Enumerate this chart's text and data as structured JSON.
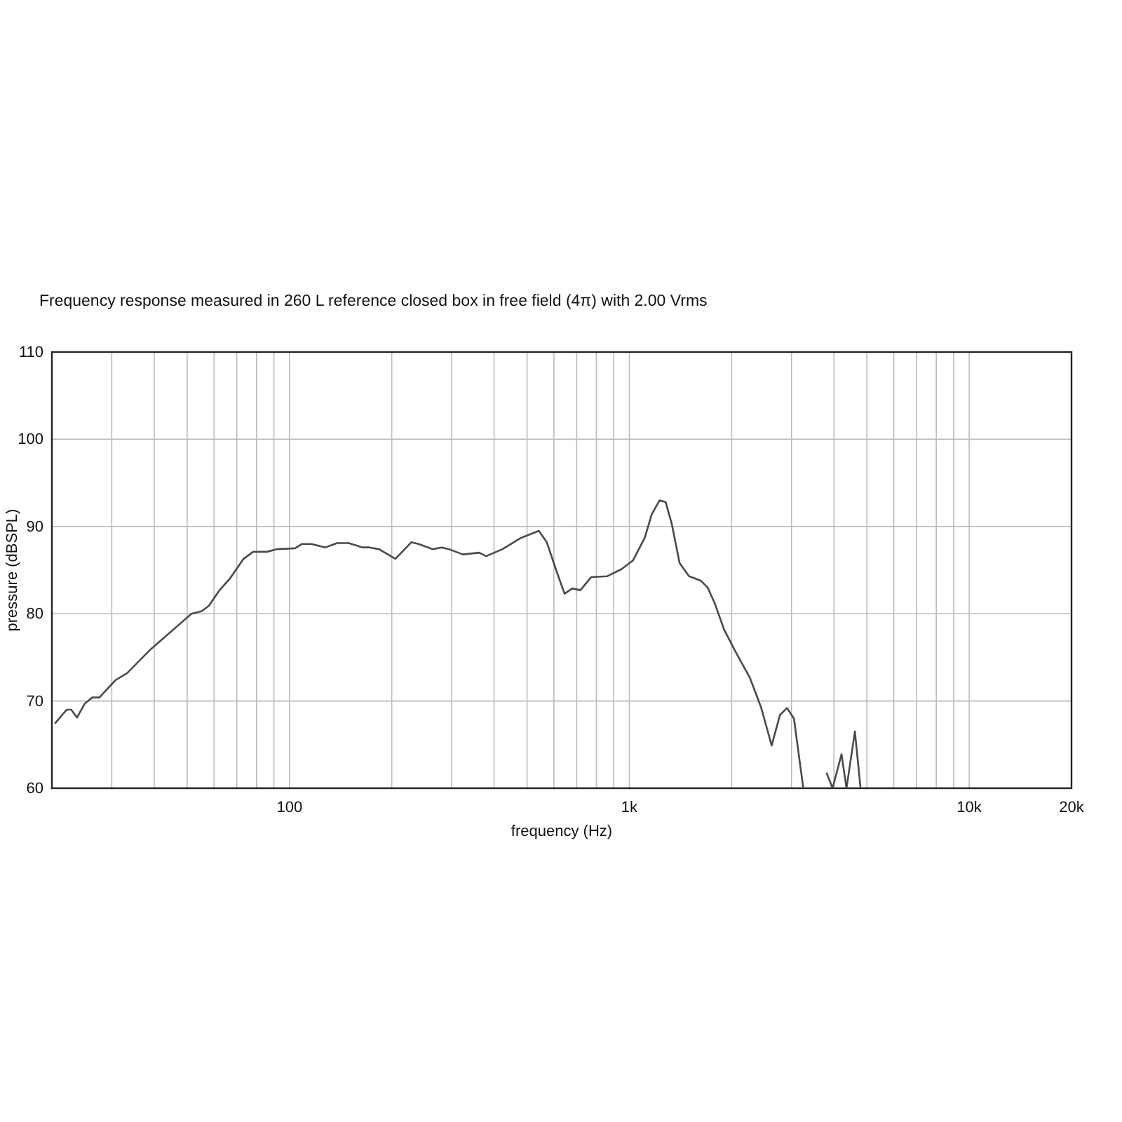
{
  "chart_data": {
    "type": "line",
    "title": "Frequency response measured in 260 L reference closed box in free field (4π) with 2.00 Vrms",
    "xlabel": "frequency (Hz)",
    "ylabel": "pressure (dBSPL)",
    "log": "x",
    "grid": true,
    "marker": "none",
    "line_style": "solid",
    "xlim": [
      20,
      20000
    ],
    "ylim": [
      60,
      110
    ],
    "xticks": [
      {
        "value": 30,
        "label": null
      },
      {
        "value": 40,
        "label": null
      },
      {
        "value": 50,
        "label": null
      },
      {
        "value": 60,
        "label": null
      },
      {
        "value": 70,
        "label": null
      },
      {
        "value": 80,
        "label": null
      },
      {
        "value": 90,
        "label": null
      },
      100,
      {
        "value": 200,
        "label": null
      },
      {
        "value": 300,
        "label": null
      },
      {
        "value": 400,
        "label": null
      },
      {
        "value": 500,
        "label": null
      },
      {
        "value": 600,
        "label": null
      },
      {
        "value": 700,
        "label": null
      },
      {
        "value": 800,
        "label": null
      },
      {
        "value": 900,
        "label": null
      },
      {
        "value": 1000,
        "label": "1k"
      },
      {
        "value": 2000,
        "label": null
      },
      {
        "value": 3000,
        "label": null
      },
      {
        "value": 4000,
        "label": null
      },
      {
        "value": 5000,
        "label": null
      },
      {
        "value": 6000,
        "label": null
      },
      {
        "value": 7000,
        "label": null
      },
      {
        "value": 8000,
        "label": null
      },
      {
        "value": 9000,
        "label": null
      },
      {
        "value": 10000,
        "label": "10k"
      },
      {
        "value": 20000,
        "label": "20k"
      }
    ],
    "yticks": [
      60,
      70,
      80,
      90,
      100,
      110
    ],
    "series": [
      {
        "color": "#4a4a4a",
        "x": [
          20.4,
          22.1,
          22.8,
          23.7,
          25.0,
          26.3,
          27.6,
          30.8,
          33.3,
          39.0,
          42.9,
          51.5,
          55.2,
          57.9,
          62.3,
          66.7,
          73.3,
          78.2,
          85.9,
          91.6,
          103.9,
          108.9,
          116.1,
          127.6,
          138.0,
          149.3,
          164.2,
          172.1,
          183.3,
          205,
          228.6,
          239.9,
          263.7,
          281.0,
          294.6,
          323.9,
          361.6,
          379.2,
          423.4,
          480.5,
          541.6,
          571.6,
          609.2,
          644.7,
          680.1,
          717.9,
          772.4,
          861.5,
          947.4,
          1025,
          1110,
          1164,
          1228,
          1279,
          1333,
          1406,
          1499,
          1622,
          1700,
          1783,
          1900,
          2056,
          2261,
          2445,
          2623,
          2775,
          2910,
          3050,
          3250,
          3500,
          3802,
          3963,
          4210,
          4355,
          4610,
          4790
        ],
        "values": [
          67.4,
          69.0,
          69.0,
          68.1,
          69.7,
          70.4,
          70.4,
          72.4,
          73.2,
          75.9,
          77.3,
          80.0,
          80.3,
          80.9,
          82.7,
          84.0,
          86.3,
          87.1,
          87.1,
          87.4,
          87.5,
          88.0,
          88.0,
          87.6,
          88.1,
          88.1,
          87.6,
          87.6,
          87.4,
          86.3,
          88.2,
          88.0,
          87.4,
          87.6,
          87.4,
          86.8,
          87.0,
          86.6,
          87.4,
          88.7,
          89.5,
          88.2,
          85.0,
          82.3,
          82.9,
          82.7,
          84.2,
          84.3,
          85.1,
          86.1,
          88.7,
          91.4,
          93.0,
          92.8,
          90.3,
          85.8,
          84.3,
          83.8,
          83.0,
          81.2,
          78.2,
          75.6,
          72.7,
          69.2,
          64.9,
          68.4,
          69.2,
          68.0,
          60.0,
          null,
          61.8,
          60.0,
          63.9,
          60.0,
          66.5,
          60.0
        ]
      }
    ]
  }
}
